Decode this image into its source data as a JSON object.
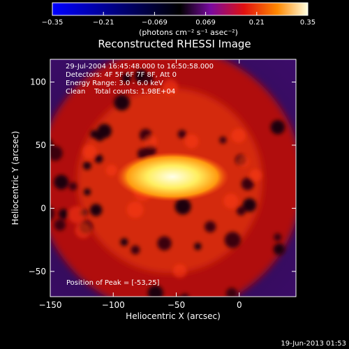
{
  "chart_data": {
    "type": "heatmap",
    "title": "Reconstructed RHESSI Image",
    "xlabel": "Heliocentric X (arcsec)",
    "ylabel": "Heliocentric Y (arcsec)",
    "xlim": [
      -150,
      45
    ],
    "ylim": [
      -70,
      118
    ],
    "x_ticks": [
      -150,
      -100,
      -50,
      0
    ],
    "y_ticks": [
      -50,
      0,
      50,
      100
    ],
    "colorbar": {
      "range": [
        -0.35,
        0.35
      ],
      "ticks": [
        "-0.35",
        "-0.21",
        "-0.069",
        "0.069",
        "0.21",
        "0.35"
      ],
      "unit_label": "(photons cm⁻² s⁻¹ asec⁻²)"
    },
    "annotations": [
      "29-Jul-2004 16:45:48.000 to 16:50:58.000",
      "Detectors: 4F 5F 6F 7F 8F, Att 0",
      "Energy Range: 3.0 - 6.0 keV",
      "Clean    Total counts: 1.98E+04"
    ],
    "peak_label": "Position of Peak = [-53,25]",
    "peak": {
      "x": -53,
      "y": 25,
      "value": 0.35
    },
    "source_radius_arcsec": 105,
    "background_value": 0.0
  },
  "footer": {
    "date": "19-Jun-2013 01:53"
  }
}
